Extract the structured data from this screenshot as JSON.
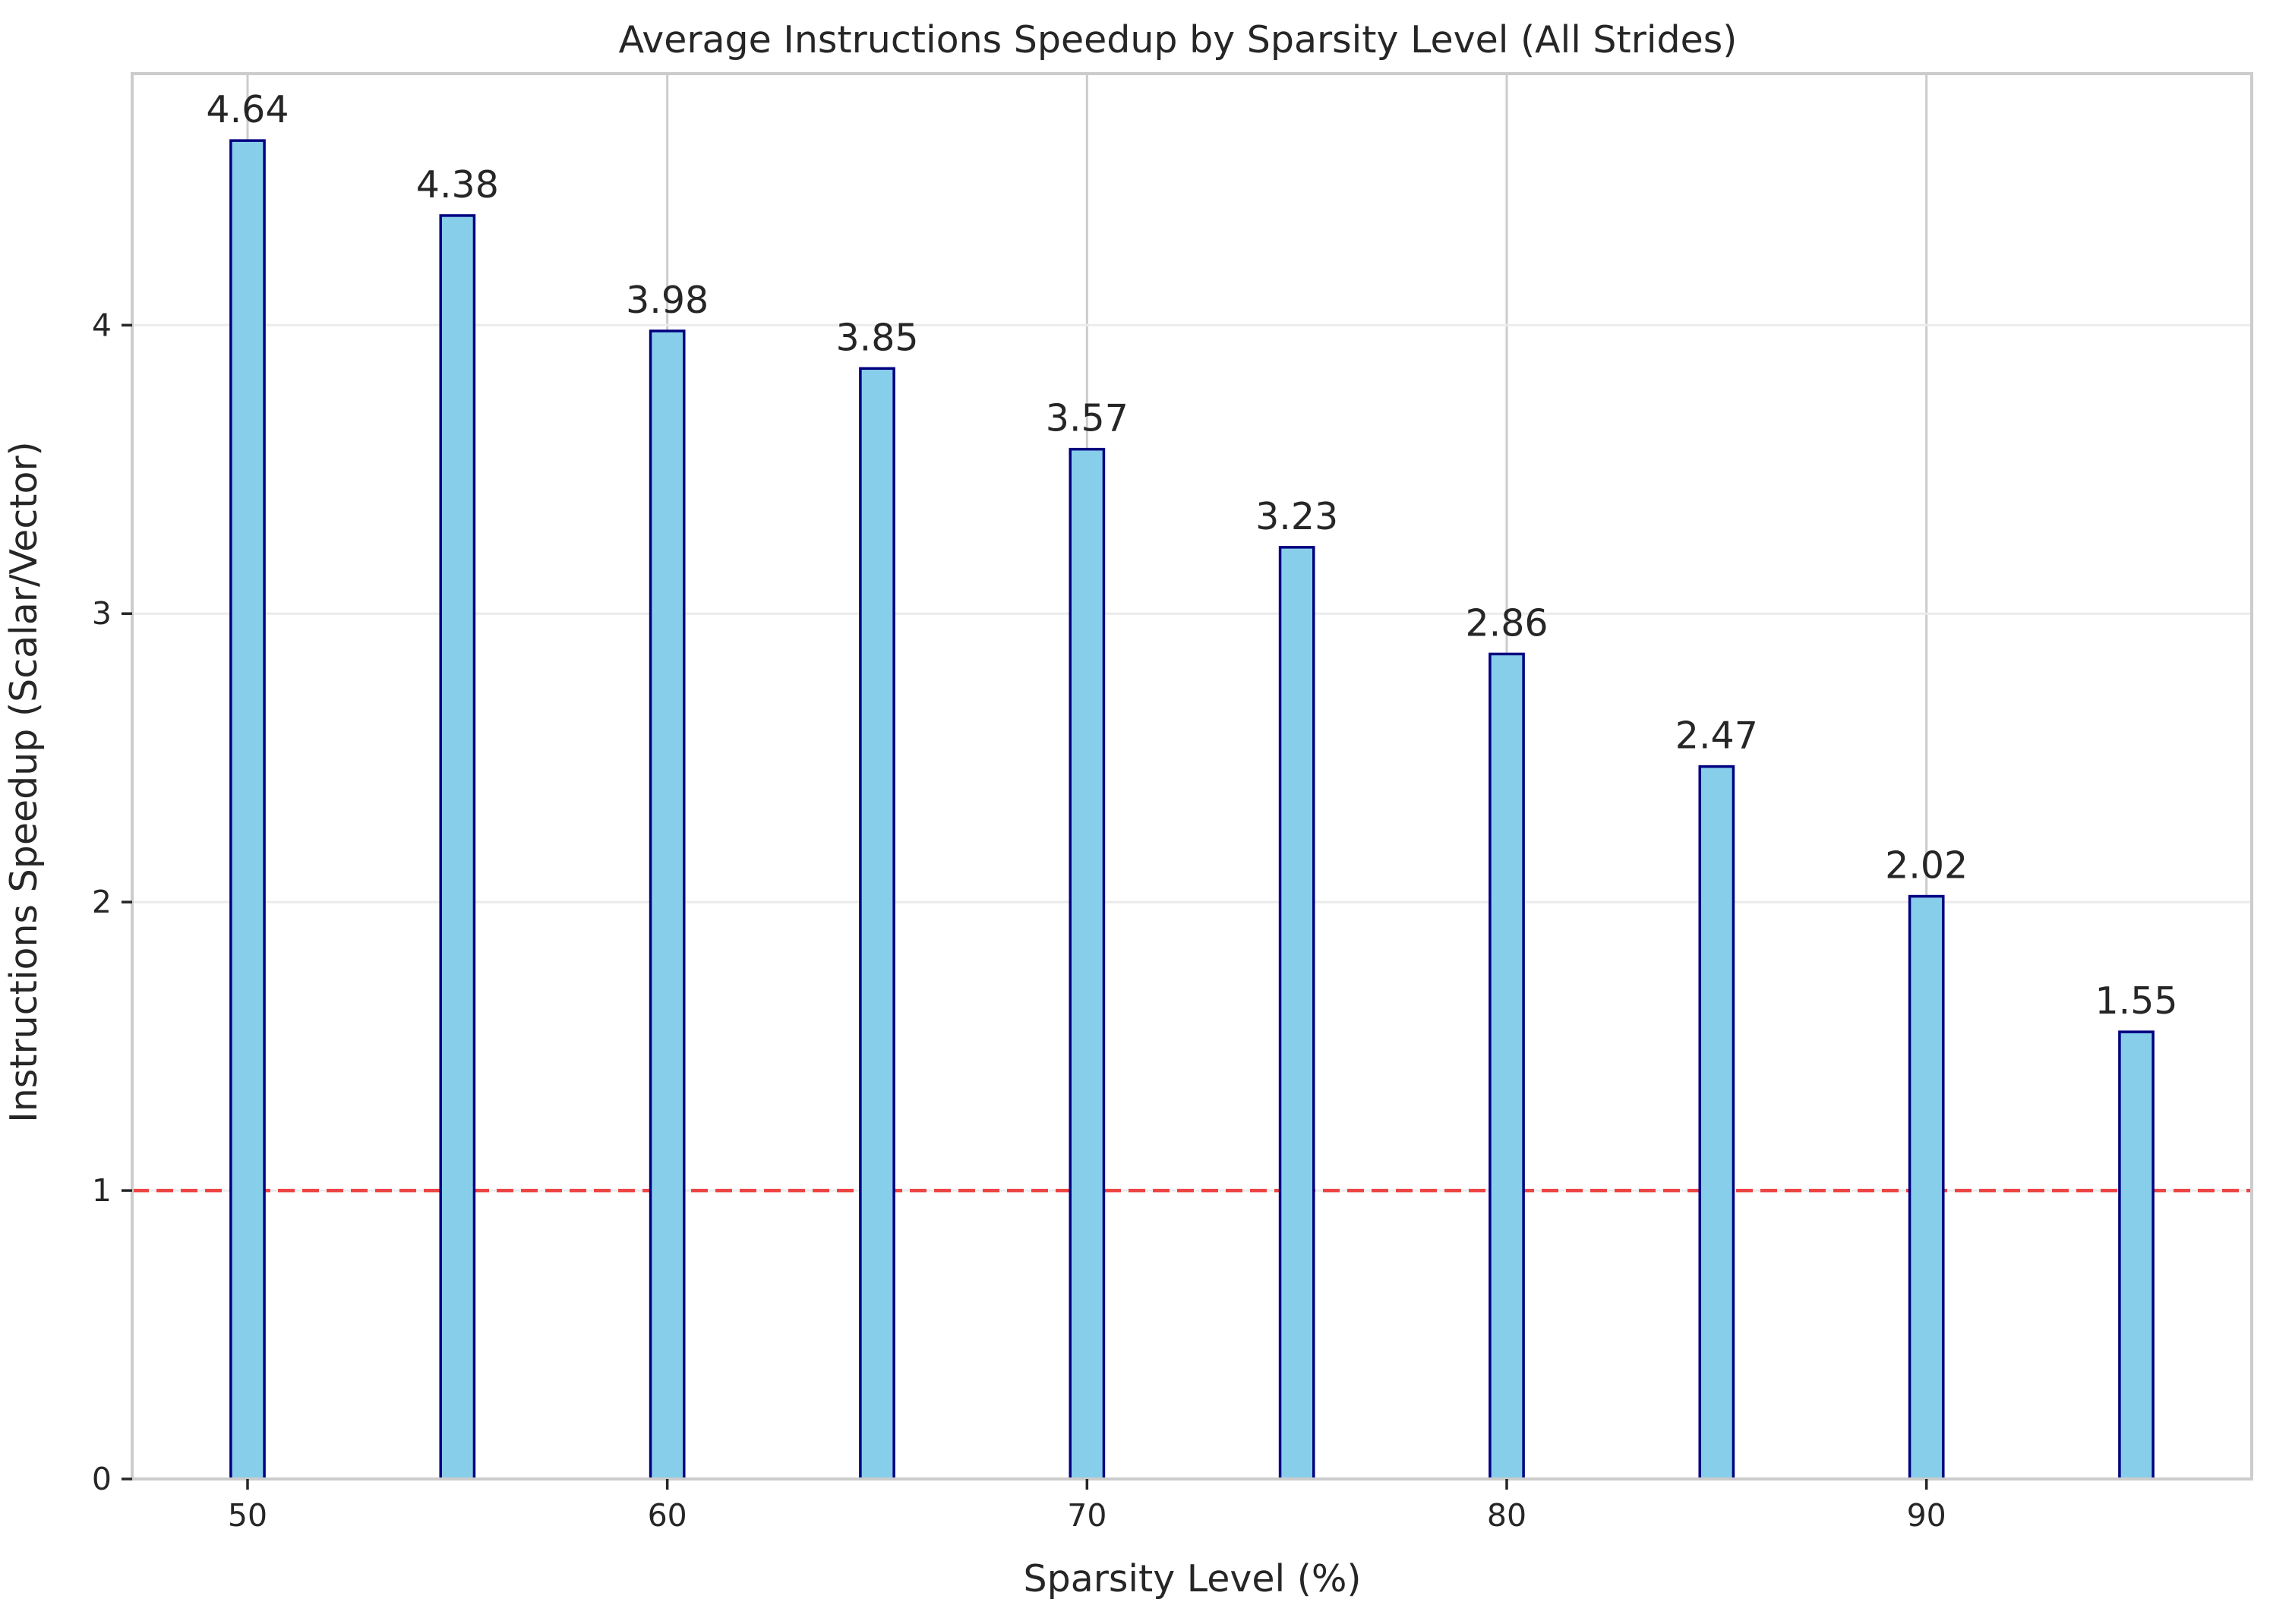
{
  "chart_data": {
    "type": "bar",
    "title": "Average Instructions Speedup by Sparsity Level (All Strides)",
    "xlabel": "Sparsity Level (%)",
    "ylabel": "Instructions Speedup (Scalar/Vector)",
    "x": [
      50,
      55,
      60,
      65,
      70,
      75,
      80,
      85,
      90,
      95
    ],
    "values": [
      4.64,
      4.38,
      3.98,
      3.85,
      3.57,
      3.23,
      2.86,
      2.47,
      2.02,
      1.55
    ],
    "value_labels": [
      "4.64",
      "4.38",
      "3.98",
      "3.85",
      "3.57",
      "3.23",
      "2.86",
      "2.47",
      "2.02",
      "1.55"
    ],
    "xlim": [
      47.25,
      97.75
    ],
    "ylim": [
      0,
      4.872
    ],
    "xticks": [
      50,
      60,
      70,
      80,
      90
    ],
    "yticks": [
      0,
      1,
      2,
      3,
      4
    ],
    "bar_width_units": 0.8,
    "reference_line": {
      "y": 1,
      "style": "dashed",
      "color": "#ee4444"
    },
    "grid": true,
    "colors": {
      "bar_fill": "#87ceeb",
      "bar_edge": "#000080"
    }
  }
}
